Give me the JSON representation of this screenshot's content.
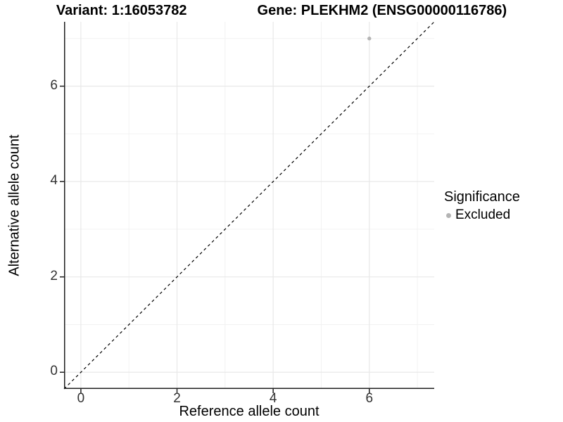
{
  "title": {
    "variant_label": "Variant: 1:16053782",
    "gene_label": "Gene: PLEKHM2 (ENSG00000116786)"
  },
  "legend": {
    "title": "Significance",
    "items": [
      {
        "label": "Excluded",
        "color": "#b4b4b4"
      }
    ]
  },
  "chart_data": {
    "type": "scatter",
    "title": "Variant: 1:16053782    Gene: PLEKHM2 (ENSG00000116786)",
    "xlabel": "Reference allele count",
    "ylabel": "Alternative allele count",
    "xlim": [
      -0.35,
      7.35
    ],
    "ylim": [
      -0.35,
      7.35
    ],
    "x_ticks": [
      0,
      2,
      4,
      6
    ],
    "y_ticks": [
      0,
      2,
      4,
      6
    ],
    "x_minor_ticks": [
      1,
      3,
      5,
      7
    ],
    "y_minor_ticks": [
      1,
      3,
      5,
      7
    ],
    "grid": "major-and-minor",
    "legend_position": "right",
    "series": [
      {
        "name": "Excluded",
        "color": "#b4b4b4",
        "points": [
          {
            "x": 6,
            "y": 7
          }
        ]
      }
    ],
    "reference_line": {
      "kind": "identity",
      "style": "dashed",
      "color": "#000000"
    },
    "colors": {
      "grid_major": "#e8e8e8",
      "grid_minor": "#f2f2f2",
      "axis": "#1f1f1f",
      "point": "#b4b4b4",
      "reference_line": "#000000"
    }
  }
}
